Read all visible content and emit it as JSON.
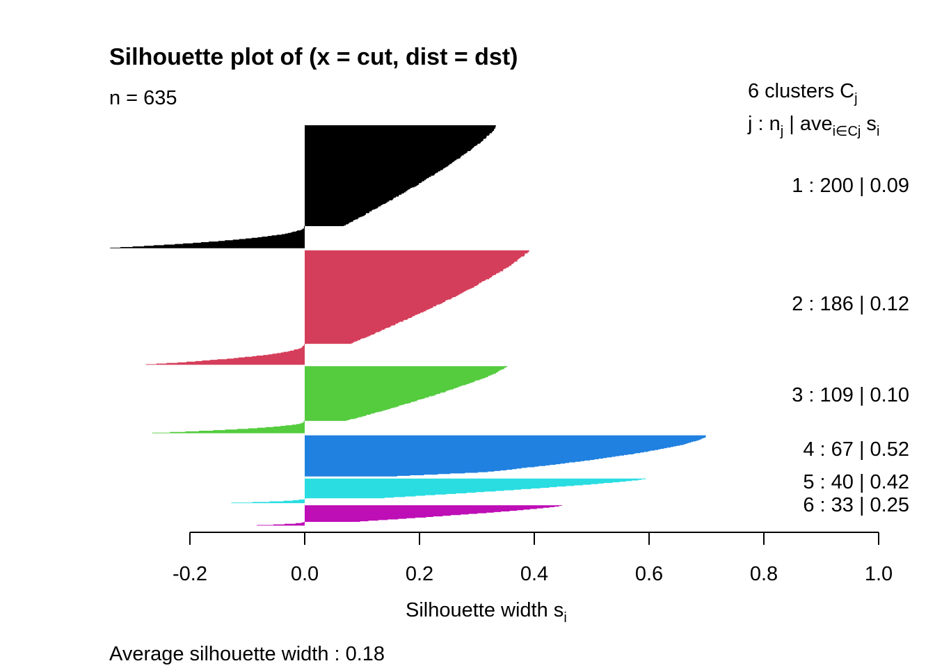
{
  "chart_data": {
    "type": "bar",
    "orientation": "horizontal",
    "title": "Silhouette plot of (x = cut, dist = dst)",
    "n_label": "n = 635",
    "legend_header": {
      "clusters": "6  clusters  C",
      "clusters_sub": "j",
      "j_label": "j :  n",
      "j_sub": "j",
      "sep": " | ave",
      "ave_sub": "i∈Cj",
      "s": "  s",
      "s_sub": "i"
    },
    "xlabel": "Silhouette width s",
    "xlabel_sub": "i",
    "footer": "Average silhouette width :  0.18",
    "xlim": [
      -0.2,
      1.0
    ],
    "xticks": [
      "-0.2",
      "0.0",
      "0.2",
      "0.4",
      "0.6",
      "0.8",
      "1.0"
    ],
    "average_width": 0.18,
    "clusters": [
      {
        "id": 1,
        "n": 200,
        "ave": 0.09,
        "color": "#000000",
        "label": "1 :   200  |  0.09",
        "min": -0.34,
        "max": 0.335
      },
      {
        "id": 2,
        "n": 186,
        "ave": 0.12,
        "color": "#D53E5A",
        "label": "2 :   186  |  0.12",
        "min": -0.275,
        "max": 0.39
      },
      {
        "id": 3,
        "n": 109,
        "ave": 0.1,
        "color": "#54CC3E",
        "label": "3 :   109  |  0.10",
        "min": -0.265,
        "max": 0.353
      },
      {
        "id": 4,
        "n": 67,
        "ave": 0.52,
        "color": "#2081E0",
        "label": "4 :   67  |  0.52",
        "min": 0.0,
        "max": 0.7
      },
      {
        "id": 5,
        "n": 40,
        "ave": 0.42,
        "color": "#29DDE1",
        "label": "5 :   40  |  0.42",
        "min": -0.127,
        "max": 0.595
      },
      {
        "id": 6,
        "n": 33,
        "ave": 0.25,
        "color": "#BE0EB6",
        "label": "6 :   33  |  0.25",
        "min": -0.085,
        "max": 0.45
      }
    ]
  }
}
